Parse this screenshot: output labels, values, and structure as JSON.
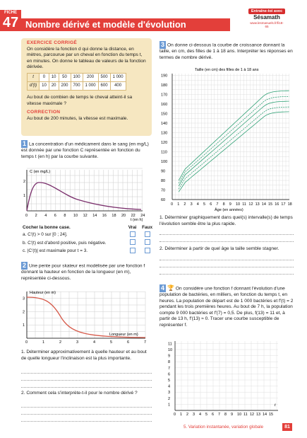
{
  "header": {
    "fiche_label": "FICHE",
    "fiche_number": "47",
    "title": "Nombre dérivé et modèle d'évolution",
    "logo_top": "Entraîne-toi avec",
    "logo_brand": "Sésamath",
    "logo_url": "www.lesmanuels.fr/fi18-65"
  },
  "exercice_corrige": {
    "heading": "EXERCICE CORRIGÉ",
    "text": "On considère la fonction d qui donne la distance, en mètres, parcourue par un cheval en fonction du temps t, en minutes. On donne le tableau de valeurs de la fonction dérivée.",
    "table_row1_label": "t",
    "table_row1": [
      "0",
      "10",
      "50",
      "100",
      "200",
      "500",
      "1 000"
    ],
    "table_row2_label": "d′(t)",
    "table_row2": [
      "10",
      "20",
      "200",
      "700",
      "1 000",
      "600",
      "400"
    ],
    "question": "Au bout de combien de temps le cheval atteint-il sa vitesse maximale ?",
    "correction_heading": "CORRECTION",
    "correction_text": "Au bout de 200 minutes, la vitesse est maximale."
  },
  "ex1": {
    "number": "1",
    "text": "La concentration d'un médicament dans le sang (en mg/L) est donnée par une fonction C représentée en fonction du temps t (en h) par la courbe suivante.",
    "graph_ylabel": "C (en mg/L)",
    "graph_xlabel": "t (en h)",
    "x_ticks": [
      "0",
      "2",
      "4",
      "6",
      "8",
      "10",
      "12",
      "14",
      "16",
      "18",
      "20",
      "22",
      "24"
    ],
    "y_ticks": [
      "1",
      "2"
    ],
    "choose": "Cocher la bonne case.",
    "vrai": "Vrai",
    "faux": "Faux",
    "items": [
      "a. C′(t) > 0 sur [0 ; 24].",
      "b. C′(t) est d'abord positive, puis négative.",
      "c. |C′(t)| est maximale pour t = 3."
    ]
  },
  "ex2": {
    "number": "2",
    "text": "Une pente pour skateur est modélisée par une fonction f donnant la hauteur en fonction de la longueur (en m), représentée ci-dessous.",
    "graph_ylabel": "Hauteur (en m)",
    "graph_xlabel": "Longueur (en m)",
    "x_ticks": [
      "0",
      "1",
      "2",
      "3",
      "4",
      "5",
      "6",
      "7"
    ],
    "y_ticks": [
      "1",
      "2",
      "3"
    ],
    "q1": "1. Déterminer approximativement à quelle hauteur et au bout de quelle longueur l'inclinaison est la plus importante.",
    "q2": "2. Comment cela s'interprète-t-il pour le nombre dérivé ?"
  },
  "ex3": {
    "number": "3",
    "text": "On donne ci-dessous la courbe de croissance donnant la taille, en cm, des filles de 1 à 18 ans. Interpréter les réponses en termes de nombre dérivé.",
    "graph_title": "Taille (en cm) des filles de 1 à 18 ans",
    "graph_xlabel": "Âge (en années)",
    "y_ticks": [
      "60",
      "70",
      "80",
      "90",
      "100",
      "110",
      "120",
      "130",
      "140",
      "150",
      "160",
      "170",
      "180",
      "190"
    ],
    "x_ticks": [
      "0",
      "1",
      "2",
      "3",
      "4",
      "5",
      "6",
      "7",
      "8",
      "9",
      "10",
      "11",
      "12",
      "13",
      "14",
      "15",
      "16",
      "17",
      "18"
    ],
    "q1": "1. Déterminer graphiquement dans quel(s) intervalle(s) de temps l'évolution semble être la plus rapide.",
    "q2": "2. Déterminer à partir de quel âge la taille semble stagner."
  },
  "ex4": {
    "number": "4",
    "text": "On considère une fonction f donnant l'évolution d'une population de bactéries, en milliers, en fonction du temps t, en heures. La population de départ est de 1 000 bactéries et f′(t) = 2 pendant les trois premières heures. Au bout de 7 h, la population compte 9 000 bactéries et f′(7) = 0,5. De plus, f(13) = 11 et, à partir de 13 h, f′(13) ≈ 0. Tracer une courbe susceptible de représenter f.",
    "x_ticks": [
      "0",
      "1",
      "2",
      "3",
      "4",
      "5",
      "6",
      "7",
      "8",
      "9",
      "10",
      "11",
      "12",
      "13",
      "14",
      "15"
    ],
    "y_ticks": [
      "1",
      "2",
      "3",
      "4",
      "5",
      "6",
      "7",
      "8",
      "9",
      "10",
      "11"
    ],
    "xlabel": "t"
  },
  "footer": {
    "chapter": "5. Variation instantanée, variation globale",
    "page": "81"
  }
}
